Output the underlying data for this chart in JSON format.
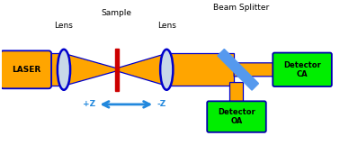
{
  "bg_color": "#ffffff",
  "orange": "#FFA500",
  "dark_blue": "#0000CC",
  "lens_fill": "#C8D8E8",
  "lens_border": "#0000CC",
  "red": "#CC0000",
  "splitter_color": "#5599EE",
  "green": "#00EE00",
  "det_border": "#0000AA",
  "arrow_color": "#2288DD",
  "labels": {
    "laser": "LASER",
    "lens1": "Lens",
    "lens2": "Lens",
    "sample": "Sample",
    "beam_splitter": "Beam Splitter",
    "detector_ca": "Detector\nCA",
    "detector_oa": "Detector\nOA",
    "plus_z": "+Z",
    "minus_z": "-Z"
  },
  "figsize": [
    3.78,
    1.61
  ],
  "dpi": 100
}
